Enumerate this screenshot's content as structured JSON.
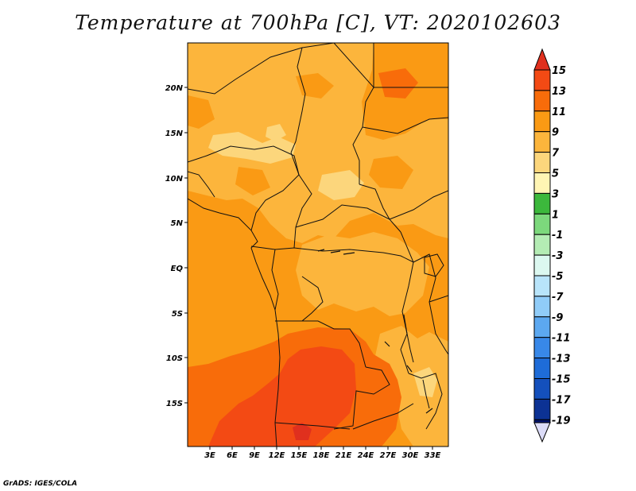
{
  "title": "Temperature at 700hPa [C], VT: 2020102603",
  "credit": "GrADS: IGES/COLA",
  "map": {
    "lat_ticks": [
      "20N",
      "15N",
      "10N",
      "5N",
      "EQ",
      "5S",
      "10S",
      "15S"
    ],
    "lon_ticks": [
      "3E",
      "6E",
      "9E",
      "12E",
      "15E",
      "18E",
      "21E",
      "24E",
      "27E",
      "30E",
      "33E"
    ]
  },
  "colorbar": {
    "labels": [
      "15",
      "13",
      "11",
      "9",
      "7",
      "5",
      "3",
      "1",
      "-1",
      "-3",
      "-5",
      "-7",
      "-9",
      "-11",
      "-13",
      "-15",
      "-17",
      "-19"
    ],
    "colors": {
      "gt15": "#e0301e",
      "c13_15": "#f34a14",
      "c11_13": "#f86c0a",
      "c9_11": "#fa9a14",
      "c7_9": "#fcb53c",
      "c5_7": "#fcd67c",
      "c3_5": "#fff5b4",
      "c1_3": "#3cb83c",
      "cm1_1": "#7cd87c",
      "cm3_m1": "#b4ecb4",
      "cm5_m3": "#dcf8f0",
      "cm7_m5": "#b8e4fa",
      "cm9_m7": "#90ccf8",
      "cm11_m9": "#5ca8f0",
      "cm13_m11": "#3888e8",
      "cm15_m13": "#1e6cd8",
      "cm17_m15": "#1450bc",
      "cm19_m17": "#0c3294",
      "lt_m19": "#00146e",
      "below": "#dcdcf8"
    }
  }
}
